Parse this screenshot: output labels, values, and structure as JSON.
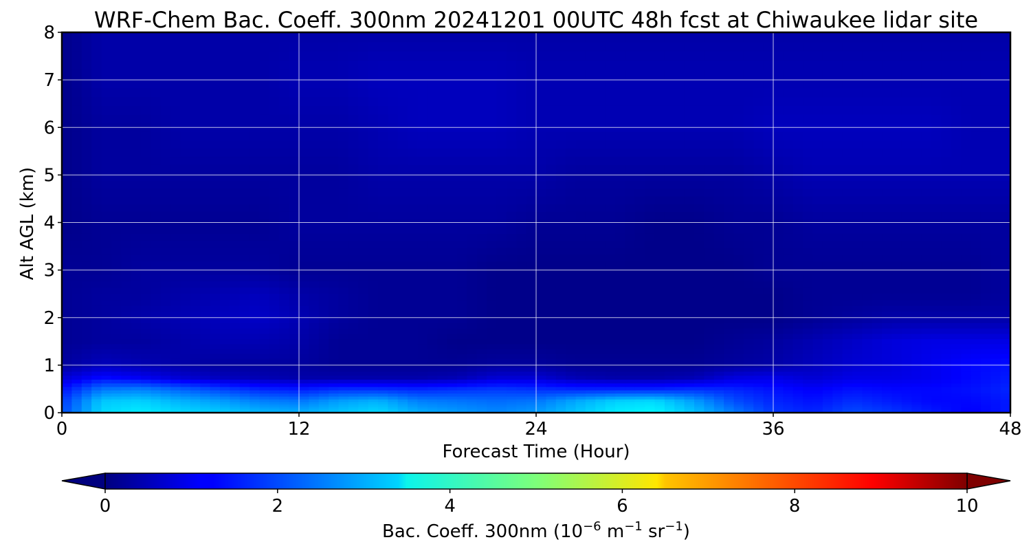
{
  "chart_data": {
    "type": "heatmap",
    "title": "WRF-Chem Bac. Coeff. 300nm  20241201 00UTC 48h fcst at Chiwaukee lidar site",
    "xlabel": "Forecast Time (Hour)",
    "ylabel": "Alt AGL (km)",
    "xlim": [
      0,
      48
    ],
    "ylim": [
      0,
      8
    ],
    "x_ticks": [
      "0",
      "12",
      "24",
      "36",
      "48"
    ],
    "y_ticks": [
      "0",
      "1",
      "2",
      "3",
      "4",
      "5",
      "6",
      "7",
      "8"
    ],
    "grid": true,
    "colormap": "jet",
    "colorbar": {
      "label_main": "Bac. Coeff. 300nm  (10",
      "label_exp1": "−6",
      "label_mid": " m",
      "label_exp2": "−1",
      "label_mid2": " sr",
      "label_exp3": "−1",
      "label_end": ")",
      "range": [
        0,
        10
      ],
      "ticks": [
        "0",
        "2",
        "4",
        "6",
        "8",
        "10"
      ],
      "extend": "both",
      "orientation": "horizontal"
    },
    "grid_x": [
      0,
      2,
      4,
      6,
      8,
      10,
      12,
      14,
      16,
      18,
      20,
      22,
      24,
      26,
      28,
      30,
      32,
      34,
      36,
      38,
      40,
      42,
      44,
      46,
      48
    ],
    "grid_y": [
      0,
      0.25,
      0.5,
      0.75,
      1,
      1.5,
      2,
      2.5,
      3,
      4,
      5,
      6,
      7,
      8
    ],
    "values": [
      [
        2.0,
        3.4,
        3.6,
        3.4,
        3.3,
        3.1,
        3.0,
        3.2,
        3.4,
        3.0,
        2.8,
        2.6,
        2.8,
        3.2,
        3.6,
        3.7,
        3.2,
        2.5,
        1.8,
        1.6,
        2.0,
        1.8,
        1.5,
        1.2,
        1.5
      ],
      [
        1.8,
        3.2,
        3.3,
        3.0,
        2.8,
        2.5,
        2.4,
        2.8,
        3.0,
        2.5,
        2.4,
        2.3,
        2.4,
        2.9,
        3.3,
        3.4,
        2.8,
        2.0,
        1.6,
        1.4,
        1.7,
        1.5,
        1.3,
        1.3,
        1.5
      ],
      [
        1.4,
        2.4,
        2.5,
        2.2,
        1.9,
        1.6,
        1.5,
        1.7,
        1.7,
        1.6,
        1.7,
        1.8,
        1.7,
        1.6,
        1.6,
        1.6,
        1.7,
        1.6,
        1.4,
        1.2,
        1.4,
        1.3,
        1.3,
        1.4,
        1.6
      ],
      [
        0.8,
        1.3,
        1.1,
        0.8,
        0.6,
        0.5,
        0.4,
        0.4,
        0.4,
        0.4,
        0.5,
        0.8,
        0.8,
        0.5,
        0.4,
        0.4,
        0.5,
        0.9,
        1.0,
        0.8,
        1.0,
        1.0,
        1.1,
        1.3,
        1.5
      ],
      [
        0.3,
        0.6,
        0.5,
        0.4,
        0.3,
        0.3,
        0.3,
        0.2,
        0.2,
        0.2,
        0.2,
        0.3,
        0.3,
        0.2,
        0.2,
        0.2,
        0.2,
        0.3,
        0.4,
        0.6,
        0.8,
        0.9,
        1.1,
        1.3,
        1.4
      ],
      [
        0.2,
        0.3,
        0.3,
        0.4,
        0.5,
        0.5,
        0.4,
        0.2,
        0.2,
        0.2,
        0.1,
        0.1,
        0.1,
        0.1,
        0.1,
        0.1,
        0.1,
        0.2,
        0.3,
        0.5,
        0.7,
        0.9,
        1.0,
        1.0,
        1.0
      ],
      [
        0.2,
        0.3,
        0.4,
        0.5,
        0.6,
        0.7,
        0.5,
        0.3,
        0.2,
        0.2,
        0.2,
        0.1,
        0.1,
        0.1,
        0.1,
        0.1,
        0.1,
        0.1,
        0.1,
        0.2,
        0.3,
        0.4,
        0.4,
        0.4,
        0.4
      ],
      [
        0.2,
        0.3,
        0.3,
        0.4,
        0.5,
        0.6,
        0.4,
        0.3,
        0.2,
        0.2,
        0.2,
        0.1,
        0.1,
        0.1,
        0.1,
        0.1,
        0.1,
        0.1,
        0.1,
        0.2,
        0.2,
        0.2,
        0.2,
        0.2,
        0.3
      ],
      [
        0.2,
        0.2,
        0.3,
        0.3,
        0.3,
        0.3,
        0.2,
        0.2,
        0.2,
        0.2,
        0.2,
        0.1,
        0.1,
        0.1,
        0.1,
        0.1,
        0.1,
        0.1,
        0.2,
        0.2,
        0.2,
        0.2,
        0.2,
        0.2,
        0.3
      ],
      [
        0.1,
        0.2,
        0.2,
        0.2,
        0.2,
        0.2,
        0.3,
        0.3,
        0.3,
        0.3,
        0.3,
        0.3,
        0.2,
        0.2,
        0.2,
        0.1,
        0.1,
        0.2,
        0.2,
        0.3,
        0.3,
        0.3,
        0.3,
        0.3,
        0.3
      ],
      [
        0.1,
        0.3,
        0.3,
        0.3,
        0.3,
        0.3,
        0.3,
        0.3,
        0.4,
        0.4,
        0.4,
        0.4,
        0.4,
        0.3,
        0.3,
        0.3,
        0.3,
        0.3,
        0.4,
        0.5,
        0.5,
        0.5,
        0.5,
        0.5,
        0.5
      ],
      [
        0.1,
        0.3,
        0.3,
        0.4,
        0.4,
        0.4,
        0.4,
        0.4,
        0.5,
        0.6,
        0.6,
        0.6,
        0.5,
        0.5,
        0.5,
        0.5,
        0.5,
        0.5,
        0.6,
        0.6,
        0.6,
        0.6,
        0.6,
        0.5,
        0.5
      ],
      [
        0.1,
        0.4,
        0.4,
        0.4,
        0.4,
        0.4,
        0.5,
        0.5,
        0.6,
        0.6,
        0.6,
        0.6,
        0.5,
        0.5,
        0.5,
        0.5,
        0.5,
        0.5,
        0.5,
        0.5,
        0.5,
        0.5,
        0.5,
        0.5,
        0.5
      ],
      [
        0.1,
        0.4,
        0.4,
        0.4,
        0.4,
        0.4,
        0.4,
        0.4,
        0.4,
        0.4,
        0.4,
        0.4,
        0.4,
        0.4,
        0.4,
        0.4,
        0.4,
        0.4,
        0.4,
        0.4,
        0.4,
        0.4,
        0.4,
        0.4,
        0.4
      ]
    ]
  }
}
